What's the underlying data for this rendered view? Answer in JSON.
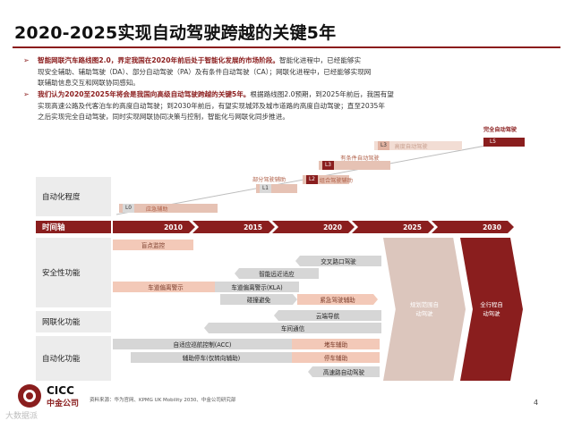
{
  "title": "2020-2025实现自动驾驶跨越的关键5年",
  "bullets": [
    {
      "lead": "智能网联汽车路线图2.0，界定我国在2020年前后处于智能化发展的市场阶段。",
      "line1_rest": "智能化进程中，已经能够实",
      "line2": "现安全辅助、辅助驾驶（DA）、部分自动驾驶（PA）及有条件自动驾驶（CA）；网联化进程中，已经能够实现网",
      "line3": "联辅助信息交互和网联协同感知。"
    },
    {
      "lead": "我们认为2020至2025年将会是我国向高级自动驾驶跨越的关键5年。",
      "line1_rest": "根据路线图2.0预期，到2025年前后，我国有望",
      "line2": "实现高速公路及代客泊车的高度自动驾驶；到2030年前后，有望实现城郊及城市道路的高度自动驾驶；直至2035年",
      "line3": "之后实现完全自动驾驶，同时实现网联协同决策与控制，智能化与网联化同步推进。"
    }
  ],
  "rows": {
    "automation_level": "自动化程度",
    "timeline": "时间轴",
    "safety": "安全性功能",
    "connectivity": "网联化功能",
    "automation": "自动化功能"
  },
  "years": [
    "2010",
    "2015",
    "2020",
    "2025",
    "2030"
  ],
  "stages": [
    {
      "tag": "L0",
      "text": "应急辅助"
    },
    {
      "tag": "L1",
      "text": "部分驾驶辅助"
    },
    {
      "tag": "L2",
      "text": "组合驾驶辅助"
    },
    {
      "tag": "L3",
      "text": "有条件自动驾驶"
    },
    {
      "tag": "L4",
      "text": "高度自动驾驶"
    },
    {
      "tag": "L5",
      "text": "完全自动驾驶"
    }
  ],
  "features": {
    "blind_spot": "盲点监控",
    "cross_traffic": "交叉路口驾驶",
    "adaptive_headlight": "智能远近适应",
    "lane_warning": "车道偏离警示",
    "lane_keep": "车道偏离警示(KLA)",
    "emergency_assist": "紧急驾驶辅助",
    "collision_avoid": "碰撞避免",
    "cloud_drive": "云端导航",
    "v2v": "车间通信",
    "acc": "自适应巡航控制(ACC)",
    "traffic_jam": "堵车辅助",
    "parking_assist": "辅助停车(仅转向辅助)",
    "park_assist2": "停车辅助",
    "highway_auto": "高速路自动驾驶",
    "geofenced": "规划范围自动驾驶",
    "full_route": "全行程自动驾驶"
  },
  "source": "资料来源：华为官网、KPMG UK Mobility 2030、中金公司研究部",
  "page_number": "4",
  "logo": {
    "en": "CICC",
    "cn": "中金公司"
  },
  "watermark": "大数据派",
  "colors": {
    "accent": "#8a1e1e",
    "pale": "#f3c9b8",
    "gray": "#d6d6d6"
  }
}
